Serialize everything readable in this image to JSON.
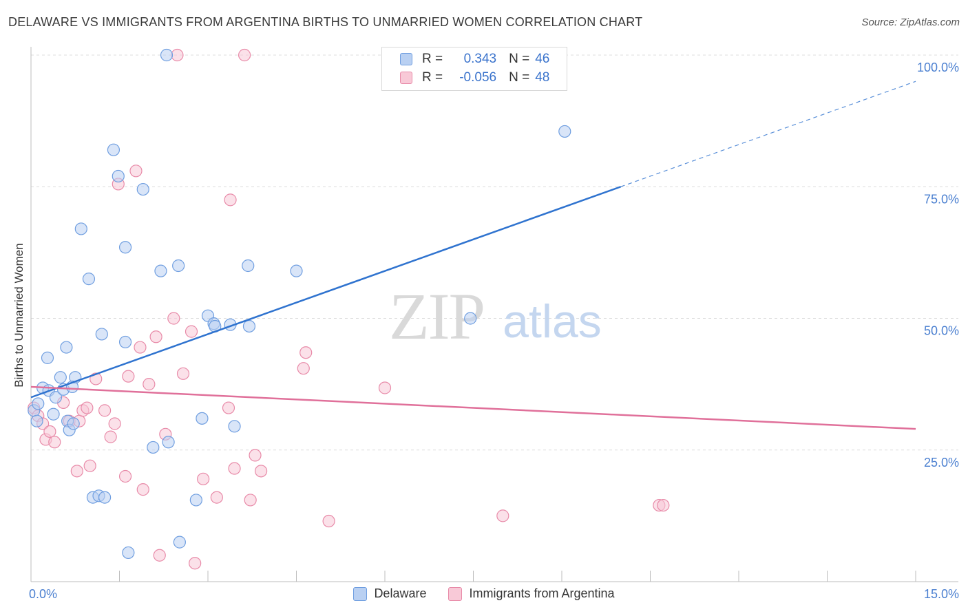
{
  "title": "DELAWARE VS IMMIGRANTS FROM ARGENTINA BIRTHS TO UNMARRIED WOMEN CORRELATION CHART",
  "source": "Source: ZipAtlas.com",
  "watermark": {
    "zip": "ZIP",
    "atlas": "atlas"
  },
  "legend": {
    "r_label": "R =",
    "n_label": "N =",
    "delaware": {
      "r": "0.343",
      "n": "46"
    },
    "argentina": {
      "r": "-0.056",
      "n": "48"
    }
  },
  "colors": {
    "delaware_fill": "#b9d0f2",
    "delaware_stroke": "#6f9ee0",
    "delaware_line": "#2f73cf",
    "argentina_fill": "#f8c9d7",
    "argentina_stroke": "#e88aa8",
    "argentina_line": "#e0709a",
    "tick": "#4a7fd0",
    "grid": "#dcdcdc"
  },
  "chart_data": {
    "type": "scatter",
    "title": "DELAWARE VS IMMIGRANTS FROM ARGENTINA BIRTHS TO UNMARRIED WOMEN CORRELATION CHART",
    "xlabel": "",
    "ylabel": "Births to Unmarried Women",
    "xlim": [
      0,
      15
    ],
    "ylim": [
      0,
      100
    ],
    "x_tick_labels": [
      "0.0%",
      "15.0%"
    ],
    "y_ticks": [
      25,
      50,
      75,
      100
    ],
    "y_tick_labels": [
      "25.0%",
      "50.0%",
      "75.0%",
      "100.0%"
    ],
    "series": [
      {
        "name": "Delaware",
        "r": 0.343,
        "n": 46,
        "trend": {
          "x0": 0,
          "y0": 35.0,
          "x1": 10.0,
          "y1": 75.0,
          "dash_x1": 15.0,
          "dash_y1": 95.0
        },
        "points": [
          [
            0.05,
            32.5
          ],
          [
            0.1,
            30.5
          ],
          [
            0.12,
            33.8
          ],
          [
            0.2,
            36.8
          ],
          [
            0.28,
            42.5
          ],
          [
            0.3,
            36.3
          ],
          [
            0.38,
            31.8
          ],
          [
            0.42,
            35.0
          ],
          [
            0.5,
            38.8
          ],
          [
            0.55,
            36.5
          ],
          [
            0.6,
            44.5
          ],
          [
            0.62,
            30.5
          ],
          [
            0.65,
            28.8
          ],
          [
            0.72,
            30.0
          ],
          [
            0.75,
            38.8
          ],
          [
            0.7,
            37.0
          ],
          [
            0.85,
            67.0
          ],
          [
            0.98,
            57.5
          ],
          [
            1.05,
            16.0
          ],
          [
            1.15,
            16.3
          ],
          [
            1.2,
            47.0
          ],
          [
            1.25,
            16.0
          ],
          [
            1.4,
            82.0
          ],
          [
            1.48,
            77.0
          ],
          [
            1.6,
            63.5
          ],
          [
            1.6,
            45.5
          ],
          [
            1.65,
            5.5
          ],
          [
            1.9,
            74.5
          ],
          [
            2.07,
            25.5
          ],
          [
            2.2,
            59.0
          ],
          [
            2.3,
            100.0
          ],
          [
            2.33,
            26.5
          ],
          [
            2.5,
            60.0
          ],
          [
            2.52,
            7.5
          ],
          [
            2.8,
            15.5
          ],
          [
            2.9,
            31.0
          ],
          [
            3.0,
            50.5
          ],
          [
            3.1,
            49.0
          ],
          [
            3.12,
            48.5
          ],
          [
            3.38,
            48.8
          ],
          [
            3.45,
            29.5
          ],
          [
            3.68,
            60.0
          ],
          [
            3.7,
            48.5
          ],
          [
            4.5,
            59.0
          ],
          [
            7.45,
            50.0
          ],
          [
            9.05,
            85.5
          ]
        ]
      },
      {
        "name": "Immigrants from Argentina",
        "r": -0.056,
        "n": 48,
        "trend": {
          "x0": 0,
          "y0": 37.0,
          "x1": 15.0,
          "y1": 29.0
        },
        "points": [
          [
            0.05,
            33.0
          ],
          [
            0.12,
            31.5
          ],
          [
            0.2,
            30.0
          ],
          [
            0.25,
            27.0
          ],
          [
            0.32,
            28.5
          ],
          [
            0.4,
            26.5
          ],
          [
            0.55,
            34.0
          ],
          [
            0.65,
            30.5
          ],
          [
            0.78,
            21.0
          ],
          [
            0.82,
            30.5
          ],
          [
            0.88,
            32.5
          ],
          [
            0.95,
            33.0
          ],
          [
            1.0,
            22.0
          ],
          [
            1.1,
            38.5
          ],
          [
            1.25,
            32.5
          ],
          [
            1.35,
            27.5
          ],
          [
            1.42,
            30.0
          ],
          [
            1.48,
            75.5
          ],
          [
            1.6,
            20.0
          ],
          [
            1.65,
            39.0
          ],
          [
            1.78,
            78.0
          ],
          [
            1.85,
            44.5
          ],
          [
            1.9,
            17.5
          ],
          [
            2.0,
            37.5
          ],
          [
            2.12,
            46.5
          ],
          [
            2.18,
            5.0
          ],
          [
            2.28,
            28.0
          ],
          [
            2.42,
            50.0
          ],
          [
            2.48,
            100.0
          ],
          [
            2.58,
            39.5
          ],
          [
            2.72,
            47.5
          ],
          [
            2.78,
            3.5
          ],
          [
            2.92,
            19.5
          ],
          [
            3.15,
            16.0
          ],
          [
            3.35,
            33.0
          ],
          [
            3.38,
            72.5
          ],
          [
            3.45,
            21.5
          ],
          [
            3.62,
            100.0
          ],
          [
            3.72,
            15.5
          ],
          [
            3.8,
            24.0
          ],
          [
            3.9,
            21.0
          ],
          [
            4.62,
            40.5
          ],
          [
            4.66,
            43.5
          ],
          [
            5.05,
            11.5
          ],
          [
            6.0,
            36.8
          ],
          [
            8.0,
            12.5
          ],
          [
            10.65,
            14.5
          ],
          [
            10.72,
            14.5
          ]
        ]
      }
    ],
    "legend": [
      "Delaware",
      "Immigrants from Argentina"
    ]
  }
}
